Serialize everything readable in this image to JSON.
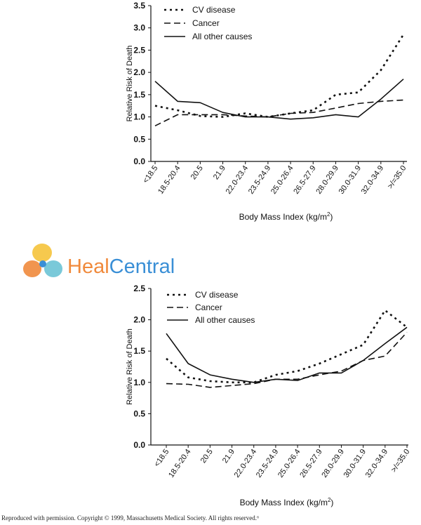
{
  "charts": [
    {
      "type": "line",
      "ylabel": "Relative Risk of Death",
      "xlabel_main": "Body Mass Index (kg/m",
      "xlabel_sup": "2",
      "xlabel_tail": ")",
      "yticks": [
        "0.0",
        "0.5",
        "1.0",
        "1.5",
        "2.0",
        "2.5",
        "3.0",
        "3.5"
      ],
      "ylim": [
        0,
        3.5
      ],
      "legend": [
        "CV disease",
        "Cancer",
        "All other causes"
      ],
      "categories": [
        "<18.5",
        "18.5-20.4",
        "20.5",
        "21.9",
        "22.0-23.4",
        "23.5-24.9",
        "25.0-26.4",
        "26.5-27.9",
        "28.0-29.9",
        "30.0-31.9",
        "32.0-34.9",
        ">/=35.0"
      ],
      "series": [
        {
          "name": "CV disease",
          "values": [
            1.25,
            1.15,
            1.02,
            1.0,
            1.08,
            1.0,
            1.08,
            1.15,
            1.5,
            1.55,
            2.05,
            2.85
          ]
        },
        {
          "name": "Cancer",
          "values": [
            0.8,
            1.05,
            1.05,
            1.05,
            1.02,
            1.0,
            1.08,
            1.1,
            1.2,
            1.3,
            1.35,
            1.38
          ]
        },
        {
          "name": "All other causes",
          "values": [
            1.8,
            1.35,
            1.32,
            1.1,
            1.0,
            1.0,
            0.95,
            0.98,
            1.05,
            1.0,
            1.4,
            1.85
          ]
        }
      ]
    },
    {
      "type": "line",
      "ylabel": "Relative Risk of Death",
      "xlabel_main": "Body Mass Index (kg/m",
      "xlabel_sup": "2",
      "xlabel_tail": ")",
      "yticks": [
        "0.0",
        "0.5",
        "1.0",
        "1.5",
        "2.0",
        "2.5"
      ],
      "ylim": [
        0,
        2.5
      ],
      "legend": [
        "CV disease",
        "Cancer",
        "All other causes"
      ],
      "categories": [
        "<18.5",
        "18.5-20.4",
        "20.5",
        "21.9",
        "22.0-23.4",
        "23.5-24.9",
        "25.0-26.4",
        "26.5-27.9",
        "28.0-29.9",
        "30.0-31.9",
        "32.0-34.9",
        ">/=35.0"
      ],
      "series": [
        {
          "name": "CV disease",
          "values": [
            1.38,
            1.08,
            1.02,
            1.0,
            1.0,
            1.12,
            1.18,
            1.3,
            1.45,
            1.6,
            2.15,
            1.88
          ]
        },
        {
          "name": "Cancer",
          "values": [
            0.98,
            0.97,
            0.92,
            0.95,
            0.98,
            1.05,
            1.05,
            1.12,
            1.18,
            1.35,
            1.42,
            1.8
          ]
        },
        {
          "name": "All other causes",
          "values": [
            1.78,
            1.3,
            1.12,
            1.05,
            1.0,
            1.05,
            1.03,
            1.15,
            1.15,
            1.35,
            1.62,
            1.88
          ]
        }
      ]
    }
  ],
  "watermark": {
    "text_a": "Heal",
    "text_b": "Central"
  },
  "footer": "Reproduced with permission. Copyright © 1999, Massachusetts Medical Society. All rights reserved.⁶",
  "colors": {
    "line": "#111111",
    "brand_orange": "#f08a3c",
    "brand_blue": "#3a8fd6",
    "brand_yellow": "#f5c33b",
    "brand_teal": "#6cc3d5"
  }
}
